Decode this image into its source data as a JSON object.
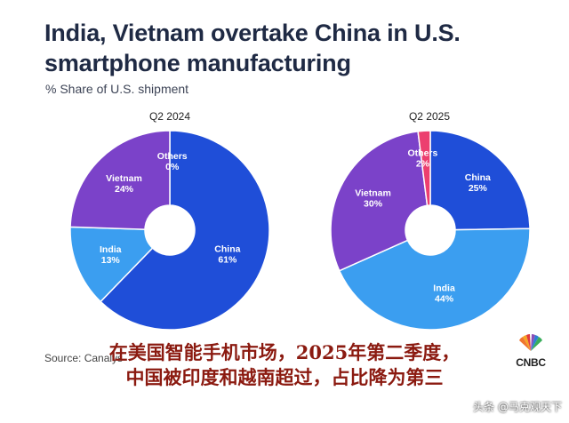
{
  "header": {
    "title": "India, Vietnam overtake China in U.S. smartphone manufacturing",
    "subtitle": "% Share of U.S. shipment"
  },
  "chart_data": [
    {
      "type": "pie",
      "title": "Q2 2024",
      "donut": true,
      "slices": [
        {
          "label": "China",
          "value_text": "61%",
          "value": 61,
          "color": "#1f4ed8"
        },
        {
          "label": "India",
          "value_text": "13%",
          "value": 13,
          "color": "#3b9ef0"
        },
        {
          "label": "Vietnam",
          "value_text": "24%",
          "value": 24,
          "color": "#7b42c9"
        },
        {
          "label": "Others",
          "value_text": "0%",
          "value": 0,
          "color": "#ec3f6f"
        }
      ]
    },
    {
      "type": "pie",
      "title": "Q2 2025",
      "donut": true,
      "slices": [
        {
          "label": "China",
          "value_text": "25%",
          "value": 25,
          "color": "#1f4ed8"
        },
        {
          "label": "India",
          "value_text": "44%",
          "value": 44,
          "color": "#3b9ef0"
        },
        {
          "label": "Vietnam",
          "value_text": "30%",
          "value": 30,
          "color": "#7b42c9"
        },
        {
          "label": "Others",
          "value_text": "2%",
          "value": 2,
          "color": "#ec3f6f"
        }
      ]
    }
  ],
  "footer": {
    "source": "Source: Canalys",
    "logo": "CNBC"
  },
  "overlay": {
    "line1": "在美国智能手机市场，2025年第二季度，",
    "line2": "中国被印度和越南超过，占比降为第三"
  },
  "watermark": "头条 @马克观天下"
}
